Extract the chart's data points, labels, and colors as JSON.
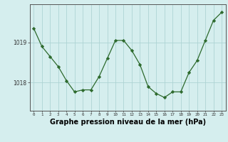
{
  "x": [
    0,
    1,
    2,
    3,
    4,
    5,
    6,
    7,
    8,
    9,
    10,
    11,
    12,
    13,
    14,
    15,
    16,
    17,
    18,
    19,
    20,
    21,
    22,
    23
  ],
  "y": [
    1019.35,
    1018.9,
    1018.65,
    1018.4,
    1018.05,
    1017.77,
    1017.82,
    1017.82,
    1018.15,
    1018.6,
    1019.05,
    1019.05,
    1018.8,
    1018.45,
    1017.9,
    1017.73,
    1017.63,
    1017.77,
    1017.77,
    1018.25,
    1018.55,
    1019.05,
    1019.55,
    1019.75
  ],
  "line_color": "#2d6a2d",
  "marker": "D",
  "marker_size": 2.2,
  "bg_color": "#d5eeee",
  "grid_color": "#aed4d4",
  "title": "Graphe pression niveau de la mer (hPa)",
  "title_fontsize": 7.0,
  "xlabel_ticks": [
    0,
    1,
    2,
    3,
    4,
    5,
    6,
    7,
    8,
    9,
    10,
    11,
    12,
    13,
    14,
    15,
    16,
    17,
    18,
    19,
    20,
    21,
    22,
    23
  ],
  "yticks": [
    1018.0,
    1019.0
  ],
  "ylim": [
    1017.3,
    1019.95
  ],
  "xlim": [
    -0.5,
    23.5
  ]
}
